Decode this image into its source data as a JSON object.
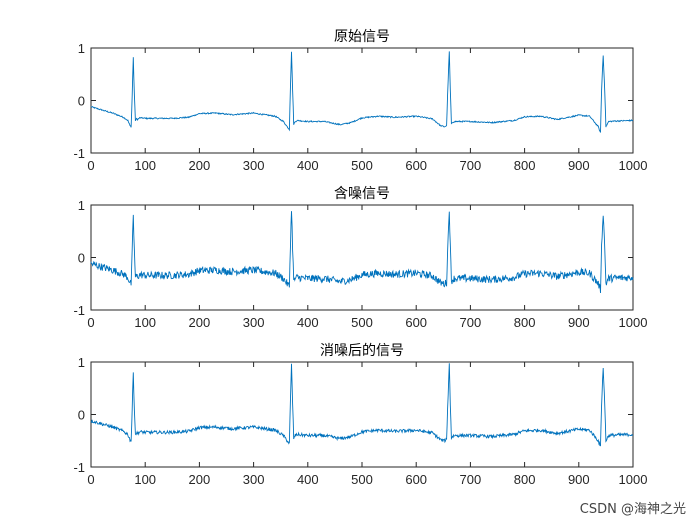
{
  "colors": {
    "trace": "#0072BD",
    "axis": "#262626",
    "background": "#ffffff"
  },
  "watermark": "CSDN @海神之光",
  "chart_data": [
    {
      "type": "line",
      "title": "原始信号",
      "xlim": [
        0,
        1000
      ],
      "ylim": [
        -1,
        1
      ],
      "xticks": [
        0,
        100,
        200,
        300,
        400,
        500,
        600,
        700,
        800,
        900,
        1000
      ],
      "yticks": [
        -1,
        0,
        1
      ],
      "grid": false,
      "x": [
        0,
        20,
        40,
        60,
        68,
        72,
        74,
        76,
        78,
        80,
        82,
        84,
        86,
        90,
        100,
        150,
        180,
        200,
        230,
        260,
        300,
        340,
        355,
        362,
        366,
        368,
        370,
        372,
        374,
        377,
        380,
        400,
        430,
        460,
        480,
        500,
        530,
        560,
        600,
        630,
        645,
        652,
        656,
        659,
        661,
        663,
        665,
        667,
        670,
        680,
        700,
        740,
        780,
        800,
        830,
        860,
        900,
        920,
        936,
        940,
        942,
        945,
        948,
        950,
        955,
        970,
        1000
      ],
      "y": [
        -0.12,
        -0.18,
        -0.24,
        -0.32,
        -0.38,
        -0.48,
        -0.5,
        0.1,
        0.82,
        0.1,
        -0.38,
        -0.35,
        -0.36,
        -0.33,
        -0.34,
        -0.34,
        -0.32,
        -0.25,
        -0.24,
        -0.27,
        -0.24,
        -0.3,
        -0.4,
        -0.5,
        -0.55,
        0.3,
        0.92,
        0.2,
        -0.45,
        -0.4,
        -0.38,
        -0.4,
        -0.4,
        -0.46,
        -0.42,
        -0.33,
        -0.3,
        -0.32,
        -0.3,
        -0.35,
        -0.48,
        -0.5,
        -0.48,
        0.4,
        0.93,
        0.2,
        -0.45,
        -0.42,
        -0.4,
        -0.4,
        -0.4,
        -0.42,
        -0.38,
        -0.31,
        -0.3,
        -0.36,
        -0.28,
        -0.3,
        -0.5,
        -0.62,
        0.2,
        0.86,
        0.15,
        -0.5,
        -0.4,
        -0.39,
        -0.38
      ]
    },
    {
      "type": "line",
      "title": "含噪信号",
      "xlim": [
        0,
        1000
      ],
      "ylim": [
        -1,
        1
      ],
      "xticks": [
        0,
        100,
        200,
        300,
        400,
        500,
        600,
        700,
        800,
        900,
        1000
      ],
      "yticks": [
        -1,
        0,
        1
      ],
      "grid": false,
      "x": [
        0,
        20,
        40,
        60,
        68,
        72,
        74,
        76,
        78,
        80,
        82,
        84,
        86,
        90,
        100,
        150,
        180,
        200,
        230,
        260,
        300,
        340,
        355,
        362,
        366,
        368,
        370,
        372,
        374,
        377,
        380,
        400,
        430,
        460,
        480,
        500,
        530,
        560,
        600,
        630,
        645,
        652,
        656,
        659,
        661,
        663,
        665,
        667,
        670,
        680,
        700,
        740,
        780,
        800,
        830,
        860,
        900,
        920,
        936,
        940,
        942,
        945,
        948,
        950,
        955,
        970,
        1000
      ],
      "y": [
        -0.12,
        -0.18,
        -0.24,
        -0.32,
        -0.38,
        -0.48,
        -0.5,
        0.1,
        0.82,
        0.1,
        -0.38,
        -0.35,
        -0.36,
        -0.33,
        -0.34,
        -0.34,
        -0.32,
        -0.25,
        -0.24,
        -0.27,
        -0.24,
        -0.3,
        -0.4,
        -0.5,
        -0.55,
        0.3,
        0.92,
        0.2,
        -0.45,
        -0.4,
        -0.38,
        -0.4,
        -0.4,
        -0.46,
        -0.42,
        -0.33,
        -0.3,
        -0.32,
        -0.3,
        -0.35,
        -0.48,
        -0.5,
        -0.48,
        0.4,
        0.93,
        0.2,
        -0.45,
        -0.42,
        -0.4,
        -0.4,
        -0.4,
        -0.42,
        -0.38,
        -0.31,
        -0.3,
        -0.36,
        -0.28,
        -0.3,
        -0.5,
        -0.62,
        0.2,
        0.86,
        0.15,
        -0.5,
        -0.4,
        -0.39,
        -0.38
      ],
      "noise_amplitude": 0.07
    },
    {
      "type": "line",
      "title": "消噪后的信号",
      "xlim": [
        0,
        1000
      ],
      "ylim": [
        -1,
        1
      ],
      "xticks": [
        0,
        100,
        200,
        300,
        400,
        500,
        600,
        700,
        800,
        900,
        1000
      ],
      "yticks": [
        -1,
        0,
        1
      ],
      "grid": false,
      "x": [
        0,
        20,
        40,
        60,
        68,
        72,
        74,
        76,
        78,
        80,
        82,
        84,
        86,
        90,
        100,
        150,
        180,
        200,
        230,
        260,
        300,
        340,
        355,
        362,
        366,
        368,
        370,
        372,
        374,
        377,
        380,
        400,
        430,
        460,
        480,
        500,
        530,
        560,
        600,
        630,
        645,
        652,
        656,
        659,
        661,
        663,
        665,
        667,
        670,
        680,
        700,
        740,
        780,
        800,
        830,
        860,
        900,
        920,
        936,
        940,
        942,
        945,
        948,
        950,
        955,
        970,
        1000
      ],
      "y": [
        -0.12,
        -0.18,
        -0.24,
        -0.32,
        -0.38,
        -0.48,
        -0.5,
        0.1,
        0.8,
        0.1,
        -0.38,
        -0.35,
        -0.36,
        -0.33,
        -0.34,
        -0.34,
        -0.32,
        -0.25,
        -0.24,
        -0.27,
        -0.24,
        -0.3,
        -0.4,
        -0.5,
        -0.55,
        0.3,
        0.95,
        0.2,
        -0.45,
        -0.4,
        -0.38,
        -0.4,
        -0.4,
        -0.46,
        -0.42,
        -0.33,
        -0.3,
        -0.32,
        -0.3,
        -0.35,
        -0.48,
        -0.5,
        -0.48,
        0.4,
        0.96,
        0.2,
        -0.45,
        -0.42,
        -0.4,
        -0.4,
        -0.4,
        -0.42,
        -0.38,
        -0.31,
        -0.3,
        -0.36,
        -0.28,
        -0.3,
        -0.5,
        -0.62,
        0.2,
        0.9,
        0.15,
        -0.5,
        -0.4,
        -0.39,
        -0.38
      ],
      "noise_amplitude": 0.03
    }
  ]
}
